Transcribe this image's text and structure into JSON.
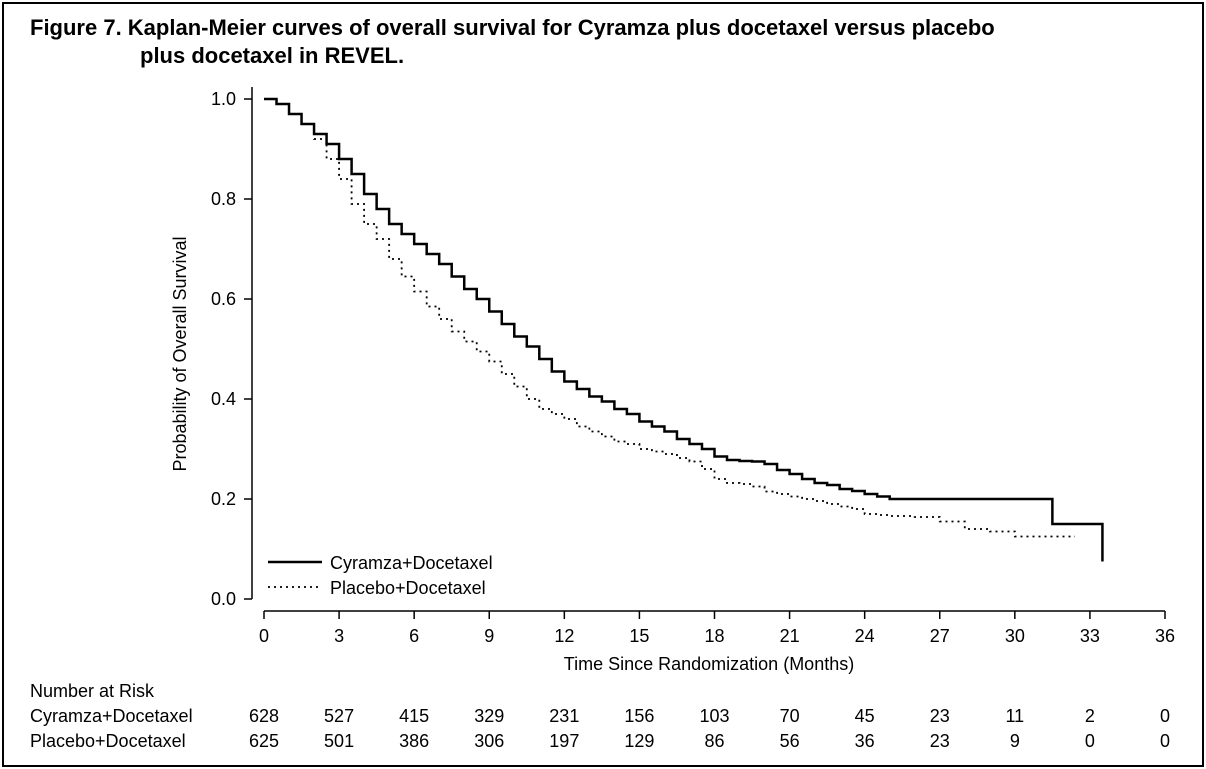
{
  "figure": {
    "title_line1": "Figure 7. Kaplan-Meier curves of overall survival for Cyramza plus docetaxel versus placebo",
    "title_line2": "plus docetaxel in REVEL."
  },
  "chart_data": {
    "type": "line",
    "xlabel": "Time Since Randomization (Months)",
    "ylabel": "Probability of Overall Survival",
    "xlim": [
      0,
      36
    ],
    "ylim": [
      0,
      1.0
    ],
    "x_ticks": [
      "0",
      "3",
      "6",
      "9",
      "12",
      "15",
      "18",
      "21",
      "24",
      "27",
      "30",
      "33",
      "36"
    ],
    "y_ticks": [
      "0.0",
      "0.2",
      "0.4",
      "0.6",
      "0.8",
      "1.0"
    ],
    "grid": false,
    "legend_position": "bottom-left",
    "series": [
      {
        "name": "Cyramza+Docetaxel",
        "style": "solid",
        "x": [
          0,
          0.5,
          1,
          1.5,
          2,
          2.5,
          3,
          3.5,
          4,
          4.5,
          5,
          5.5,
          6,
          6.5,
          7,
          7.5,
          8,
          8.5,
          9,
          9.5,
          10,
          10.5,
          11,
          11.5,
          12,
          12.5,
          13,
          13.5,
          14,
          14.5,
          15,
          15.5,
          16,
          16.5,
          17,
          17.5,
          18,
          18.5,
          19,
          19.5,
          20,
          20.5,
          21,
          21.5,
          22,
          22.5,
          23,
          23.5,
          24,
          24.5,
          25,
          31.5,
          31.5,
          33.5,
          33.5
        ],
        "y": [
          1.0,
          0.99,
          0.97,
          0.95,
          0.93,
          0.91,
          0.88,
          0.85,
          0.81,
          0.78,
          0.75,
          0.73,
          0.71,
          0.69,
          0.67,
          0.645,
          0.62,
          0.6,
          0.575,
          0.55,
          0.525,
          0.505,
          0.48,
          0.455,
          0.435,
          0.42,
          0.405,
          0.395,
          0.38,
          0.37,
          0.355,
          0.345,
          0.335,
          0.32,
          0.31,
          0.3,
          0.285,
          0.278,
          0.276,
          0.275,
          0.27,
          0.258,
          0.25,
          0.24,
          0.232,
          0.228,
          0.22,
          0.216,
          0.21,
          0.205,
          0.2,
          0.2,
          0.15,
          0.15,
          0.075
        ]
      },
      {
        "name": "Placebo+Docetaxel",
        "style": "dotted",
        "x": [
          0,
          0.5,
          1,
          1.5,
          2,
          2.5,
          3,
          3.5,
          4,
          4.5,
          5,
          5.5,
          6,
          6.5,
          7,
          7.5,
          8,
          8.5,
          9,
          9.5,
          10,
          10.5,
          11,
          11.5,
          12,
          12.5,
          13,
          13.5,
          14,
          14.5,
          15,
          15.5,
          16,
          16.5,
          17,
          17.5,
          18,
          18.5,
          19,
          19.5,
          20,
          20.5,
          21,
          21.5,
          22,
          22.5,
          23,
          23.5,
          24,
          24.5,
          25,
          26,
          27,
          28,
          29,
          30,
          31,
          32,
          32.4
        ],
        "y": [
          1.0,
          0.99,
          0.97,
          0.95,
          0.92,
          0.88,
          0.84,
          0.79,
          0.75,
          0.72,
          0.68,
          0.645,
          0.615,
          0.585,
          0.56,
          0.535,
          0.515,
          0.495,
          0.475,
          0.45,
          0.425,
          0.4,
          0.38,
          0.37,
          0.36,
          0.345,
          0.335,
          0.325,
          0.315,
          0.31,
          0.3,
          0.295,
          0.29,
          0.282,
          0.275,
          0.26,
          0.24,
          0.232,
          0.23,
          0.225,
          0.215,
          0.21,
          0.205,
          0.2,
          0.196,
          0.19,
          0.185,
          0.18,
          0.17,
          0.168,
          0.166,
          0.164,
          0.155,
          0.14,
          0.135,
          0.125,
          0.125,
          0.125,
          0.125
        ]
      }
    ]
  },
  "number_at_risk": {
    "heading": "Number at Risk",
    "rows": [
      {
        "label": "Cyramza+Docetaxel",
        "values": [
          "628",
          "527",
          "415",
          "329",
          "231",
          "156",
          "103",
          "70",
          "45",
          "23",
          "11",
          "2",
          "0"
        ]
      },
      {
        "label": "Placebo+Docetaxel",
        "values": [
          "625",
          "501",
          "386",
          "306",
          "197",
          "129",
          "86",
          "56",
          "36",
          "23",
          "9",
          "0",
          "0"
        ]
      }
    ]
  }
}
